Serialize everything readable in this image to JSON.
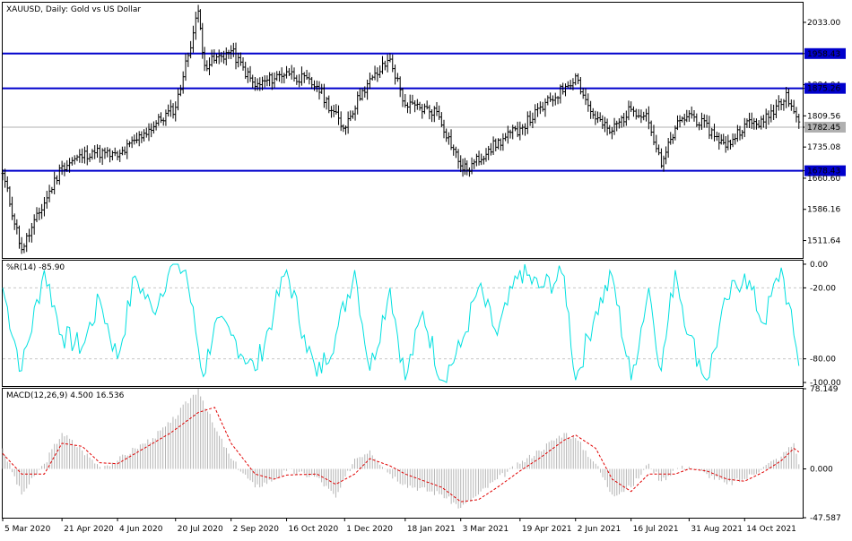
{
  "chart_data": [
    {
      "type": "ohlc",
      "title": "XAUUSD, Daily:  Gold vs US Dollar",
      "ylim": [
        1470,
        2080
      ],
      "y_ticks": [
        "2033.00",
        "1958.43",
        "1884.04",
        "1875.26",
        "1809.56",
        "1782.45",
        "1735.08",
        "1678.43",
        "1660.60",
        "1586.16",
        "1511.64"
      ],
      "horizontal_lines": [
        {
          "label": "1958.43",
          "value": 1958.43,
          "color": "#0000cc"
        },
        {
          "label": "1875.26",
          "value": 1875.26,
          "color": "#0000cc"
        },
        {
          "label": "1678.43",
          "value": 1678.43,
          "color": "#0000cc"
        }
      ],
      "current_price": {
        "label": "1782.45",
        "value": 1782.45
      },
      "bar_color": "#000000",
      "series": [
        {
          "x": [
            "2020-03-05",
            "2020-03-20",
            "2020-04-21",
            "2020-05-15",
            "2020-06-04",
            "2020-06-25",
            "2020-07-20",
            "2020-08-07",
            "2020-08-12",
            "2020-09-02",
            "2020-09-21",
            "2020-10-16",
            "2020-11-09",
            "2020-11-30",
            "2020-12-15",
            "2021-01-06",
            "2021-01-18",
            "2021-02-12",
            "2021-03-03",
            "2021-03-08",
            "2021-03-25",
            "2021-04-19",
            "2021-05-25",
            "2021-06-02",
            "2021-06-14",
            "2021-06-29",
            "2021-07-16",
            "2021-07-28",
            "2021-08-09",
            "2021-08-20",
            "2021-08-31",
            "2021-09-22",
            "2021-09-29",
            "2021-10-14",
            "2021-10-29",
            "2021-11-16",
            "2021-11-26"
          ],
          "values": [
            1672,
            1490,
            1690,
            1725,
            1712,
            1768,
            1830,
            2060,
            1930,
            1965,
            1880,
            1915,
            1880,
            1780,
            1870,
            1945,
            1835,
            1820,
            1690,
            1680,
            1730,
            1780,
            1880,
            1905,
            1820,
            1770,
            1825,
            1815,
            1690,
            1780,
            1815,
            1760,
            1735,
            1790,
            1795,
            1865,
            1795
          ]
        }
      ]
    },
    {
      "type": "line",
      "title": "%R(14) -85.90",
      "ylim": [
        -103,
        3
      ],
      "y_ticks": [
        "0.00",
        "-20.00",
        "-80.00",
        "-100.00"
      ],
      "levels": [
        -20,
        -80
      ],
      "series": [
        {
          "name": "%R(14)",
          "color": "#00e0e0",
          "x": [
            "2020-03-05",
            "2020-03-20",
            "2020-04-07",
            "2020-04-21",
            "2020-05-07",
            "2020-05-21",
            "2020-06-04",
            "2020-06-18",
            "2020-07-02",
            "2020-07-16",
            "2020-07-28",
            "2020-08-11",
            "2020-08-20",
            "2020-09-02",
            "2020-09-21",
            "2020-10-06",
            "2020-10-16",
            "2020-10-30",
            "2020-11-09",
            "2020-11-24",
            "2020-12-09",
            "2020-12-21",
            "2021-01-06",
            "2021-01-18",
            "2021-02-01",
            "2021-02-16",
            "2021-03-03",
            "2021-03-17",
            "2021-04-01",
            "2021-04-19",
            "2021-05-04",
            "2021-05-24",
            "2021-06-02",
            "2021-06-18",
            "2021-07-01",
            "2021-07-16",
            "2021-07-30",
            "2021-08-09",
            "2021-08-20",
            "2021-08-31",
            "2021-09-14",
            "2021-09-30",
            "2021-10-14",
            "2021-10-29",
            "2021-11-12",
            "2021-11-22",
            "2021-11-26"
          ],
          "values": [
            -20,
            -90,
            -5,
            -60,
            -70,
            -30,
            -80,
            -10,
            -40,
            -2,
            -5,
            -95,
            -50,
            -60,
            -90,
            -40,
            -5,
            -60,
            -95,
            -60,
            -5,
            -90,
            -20,
            -98,
            -40,
            -98,
            -70,
            -20,
            -60,
            -5,
            -20,
            -10,
            -98,
            -40,
            -10,
            -98,
            -20,
            -90,
            -5,
            -60,
            -98,
            -30,
            -8,
            -50,
            -3,
            -60,
            -86
          ]
        }
      ]
    },
    {
      "type": "bar",
      "title": "MACD(12,26,9) 4.500 16.536",
      "ylim": [
        -47.587,
        78.149
      ],
      "y_ticks": [
        "78.149",
        "0.000",
        "-47.587"
      ],
      "bar_color": "#b4b4b4",
      "x_tick_labels": [
        "5 Mar 2020",
        "21 Apr 2020",
        "4 Jun 2020",
        "20 Jul 2020",
        "2 Sep 2020",
        "16 Oct 2020",
        "1 Dec 2020",
        "18 Jan 2021",
        "3 Mar 2021",
        "19 Apr 2021",
        "2 Jun 2021",
        "16 Jul 2021",
        "31 Aug 2021",
        "14 Oct 2021"
      ],
      "series": [
        {
          "name": "MACD",
          "x": [
            "2020-03-05",
            "2020-03-20",
            "2020-04-07",
            "2020-04-21",
            "2020-05-07",
            "2020-05-21",
            "2020-06-04",
            "2020-06-18",
            "2020-07-02",
            "2020-07-16",
            "2020-08-07",
            "2020-08-20",
            "2020-09-02",
            "2020-09-21",
            "2020-10-06",
            "2020-10-16",
            "2020-11-09",
            "2020-11-24",
            "2020-12-09",
            "2020-12-21",
            "2021-01-06",
            "2021-01-18",
            "2021-02-16",
            "2021-03-03",
            "2021-03-17",
            "2021-04-01",
            "2021-04-19",
            "2021-05-04",
            "2021-05-24",
            "2021-06-02",
            "2021-06-18",
            "2021-07-01",
            "2021-07-16",
            "2021-07-30",
            "2021-08-09",
            "2021-08-20",
            "2021-08-31",
            "2021-09-14",
            "2021-09-30",
            "2021-10-14",
            "2021-10-29",
            "2021-11-12",
            "2021-11-22",
            "2021-11-26"
          ],
          "values": [
            20,
            -25,
            5,
            35,
            18,
            2,
            8,
            20,
            30,
            45,
            78,
            40,
            10,
            -18,
            -10,
            -2,
            -8,
            -28,
            10,
            18,
            -5,
            -15,
            -25,
            -38,
            -25,
            -10,
            5,
            18,
            35,
            30,
            5,
            -25,
            -18,
            5,
            -12,
            0,
            2,
            -5,
            -15,
            -10,
            2,
            12,
            25,
            4.5
          ]
        },
        {
          "name": "Signal",
          "color": "#e00000",
          "x": [
            "2020-03-05",
            "2020-03-20",
            "2020-04-07",
            "2020-04-21",
            "2020-05-07",
            "2020-05-21",
            "2020-06-04",
            "2020-06-18",
            "2020-07-02",
            "2020-07-16",
            "2020-08-07",
            "2020-08-20",
            "2020-09-02",
            "2020-09-21",
            "2020-10-06",
            "2020-10-16",
            "2020-11-09",
            "2020-11-24",
            "2020-12-09",
            "2020-12-21",
            "2021-01-06",
            "2021-01-18",
            "2021-02-16",
            "2021-03-03",
            "2021-03-17",
            "2021-04-01",
            "2021-04-19",
            "2021-05-04",
            "2021-05-24",
            "2021-06-02",
            "2021-06-18",
            "2021-07-01",
            "2021-07-16",
            "2021-07-30",
            "2021-08-09",
            "2021-08-20",
            "2021-08-31",
            "2021-09-14",
            "2021-09-30",
            "2021-10-14",
            "2021-10-29",
            "2021-11-12",
            "2021-11-22",
            "2021-11-26"
          ],
          "values": [
            15,
            -5,
            -5,
            25,
            22,
            6,
            5,
            15,
            25,
            35,
            55,
            60,
            25,
            -5,
            -10,
            -6,
            -5,
            -15,
            -5,
            10,
            3,
            -5,
            -18,
            -32,
            -30,
            -18,
            -2,
            10,
            28,
            33,
            20,
            -10,
            -22,
            -5,
            -5,
            -5,
            0,
            -2,
            -10,
            -12,
            -3,
            8,
            20,
            16.536
          ]
        }
      ]
    }
  ]
}
